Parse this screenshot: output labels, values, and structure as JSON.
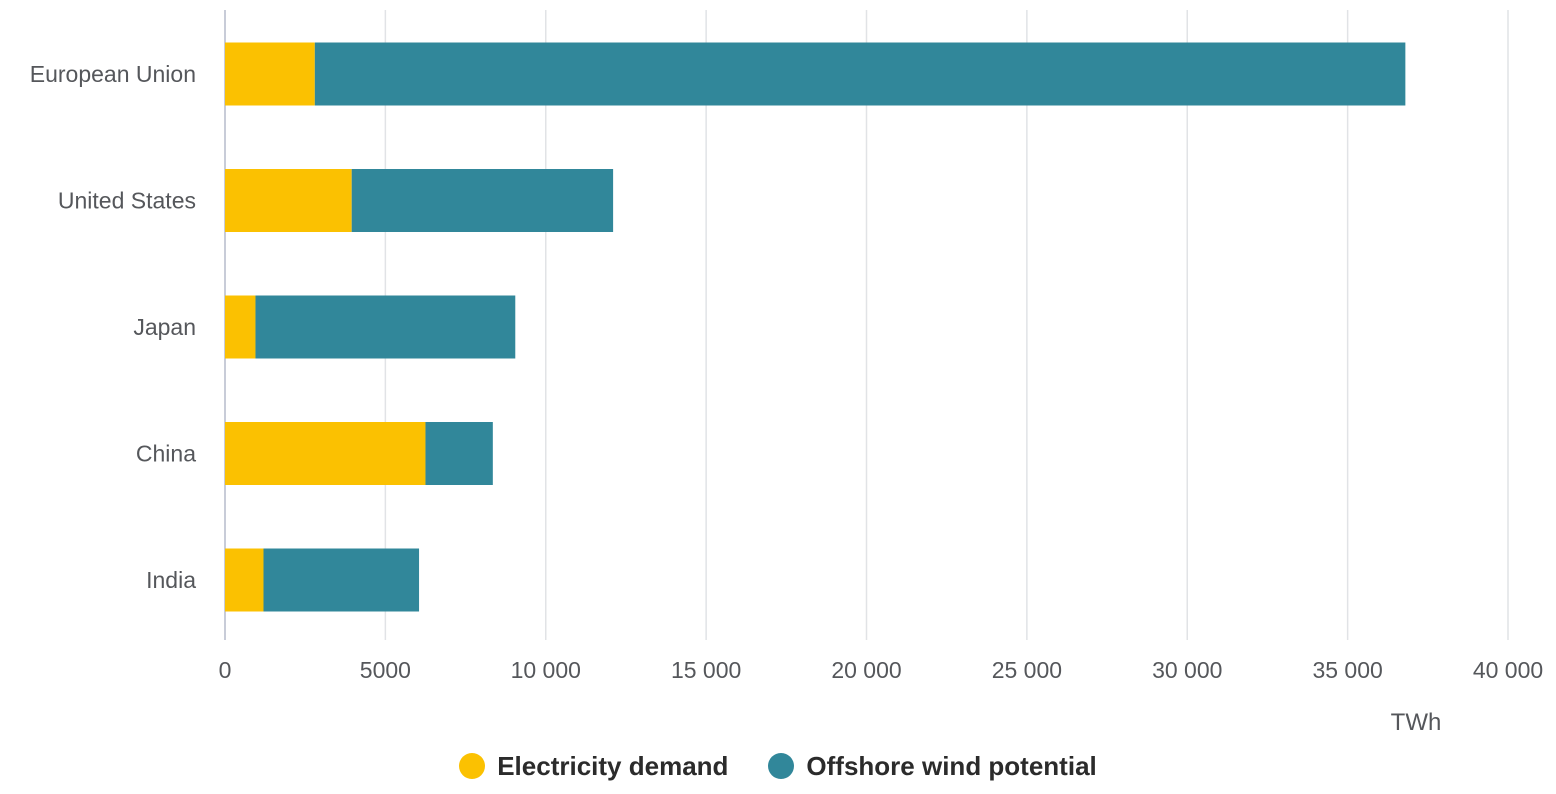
{
  "chart_data": {
    "type": "bar",
    "orientation": "horizontal",
    "stacked": true,
    "categories": [
      "European Union",
      "United States",
      "Japan",
      "China",
      "India"
    ],
    "series": [
      {
        "name": "Electricity demand",
        "color": "#fbc101",
        "values": [
          2800,
          3950,
          950,
          6250,
          1200
        ]
      },
      {
        "name": "Offshore wind potential",
        "color": "#31879a",
        "values": [
          34000,
          8150,
          8100,
          2100,
          4850
        ]
      }
    ],
    "xlim": [
      0,
      40000
    ],
    "xticks": [
      0,
      5000,
      10000,
      15000,
      20000,
      25000,
      30000,
      35000,
      40000
    ],
    "xtick_labels": [
      "0",
      "5000",
      "10 000",
      "15 000",
      "20 000",
      "25 000",
      "30 000",
      "35 000",
      "40 000"
    ],
    "xunit": "TWh",
    "grid": "vertical",
    "legend_position": "bottom"
  }
}
